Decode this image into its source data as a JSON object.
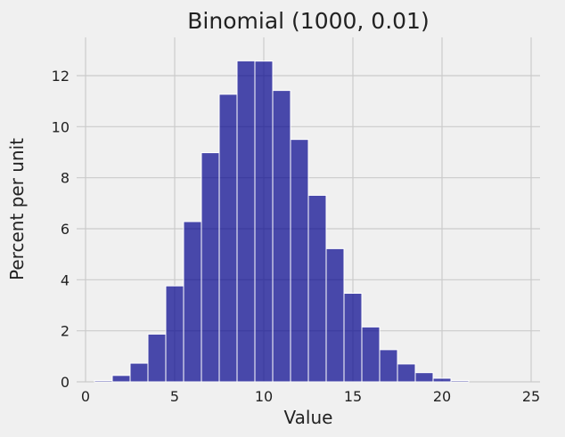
{
  "chart_data": {
    "type": "bar",
    "title": "Binomial (1000, 0.01)",
    "xlabel": "Value",
    "ylabel": "Percent per unit",
    "xlim": [
      -0.5,
      25.5
    ],
    "ylim": [
      0,
      13.5
    ],
    "xticks": [
      0,
      5,
      10,
      15,
      20,
      25
    ],
    "yticks": [
      0,
      2,
      4,
      6,
      8,
      10,
      12
    ],
    "grid": true,
    "bar_color": "#00008b",
    "bar_opacity": 0.7,
    "bar_edge_color": "#ffffff",
    "background_color": "#f0f0f0",
    "bin_width": 1,
    "x": [
      1,
      2,
      3,
      4,
      5,
      6,
      7,
      8,
      9,
      10,
      11,
      12,
      13,
      14,
      15,
      16,
      17,
      18,
      19,
      20,
      21
    ],
    "values": [
      0.05,
      0.25,
      0.73,
      1.87,
      3.76,
      6.28,
      8.98,
      11.27,
      12.58,
      12.57,
      11.42,
      9.5,
      7.31,
      5.22,
      3.47,
      2.15,
      1.26,
      0.7,
      0.36,
      0.14,
      0.05
    ]
  }
}
